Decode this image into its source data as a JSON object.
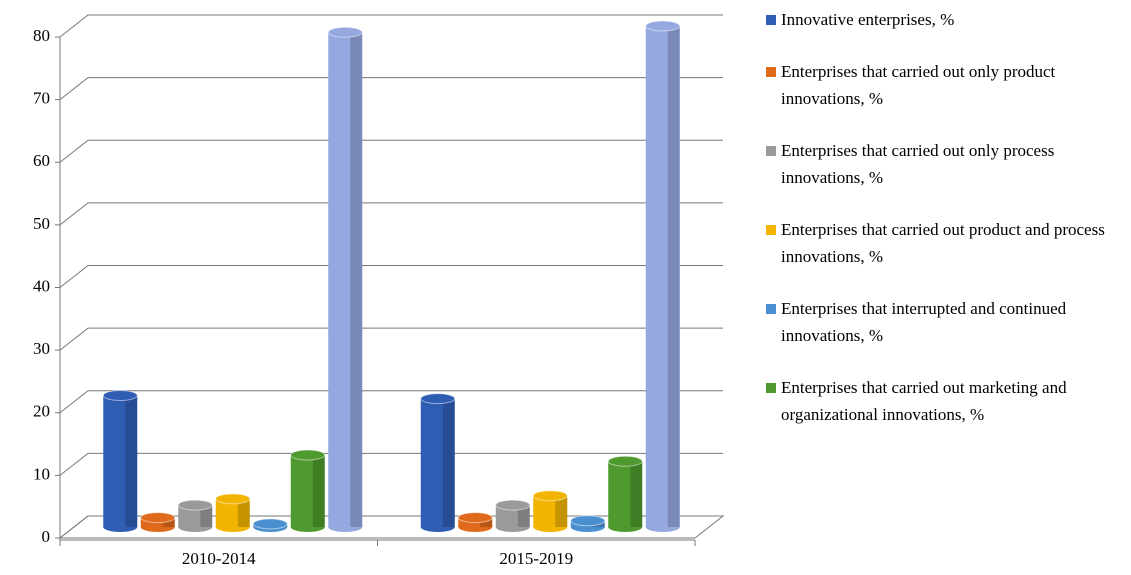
{
  "chart_data": {
    "type": "bar3d",
    "categories": [
      "2010-2014",
      "2015-2019"
    ],
    "series": [
      {
        "name": "Innovative enterprises, %",
        "color": "#2f5db4",
        "values": [
          21,
          20.5
        ]
      },
      {
        "name": "Enterprises that carried out only product innovations, %",
        "color": "#e06a1b",
        "values": [
          1.5,
          1.5
        ]
      },
      {
        "name": "Enterprises that carried out only process innovations, %",
        "color": "#9a9a9a",
        "values": [
          3.5,
          3.5
        ]
      },
      {
        "name": "Enterprises that carried out product and process innovations, %",
        "color": "#f2b400",
        "values": [
          4.5,
          5
        ]
      },
      {
        "name": "Enterprises that interrupted and continued innovations, %",
        "color": "#4a90d0",
        "values": [
          0.5,
          1
        ]
      },
      {
        "name": "Enterprises that carried out marketing and organizational innovations, %",
        "color": "#4e9a2e",
        "values": [
          11.5,
          10.5
        ]
      },
      {
        "color": "#95a8e0",
        "values": [
          79,
          80
        ]
      }
    ],
    "ylim": [
      0,
      80
    ],
    "yticks": [
      0,
      10,
      20,
      30,
      40,
      50,
      60,
      70,
      80
    ],
    "grid": true
  }
}
